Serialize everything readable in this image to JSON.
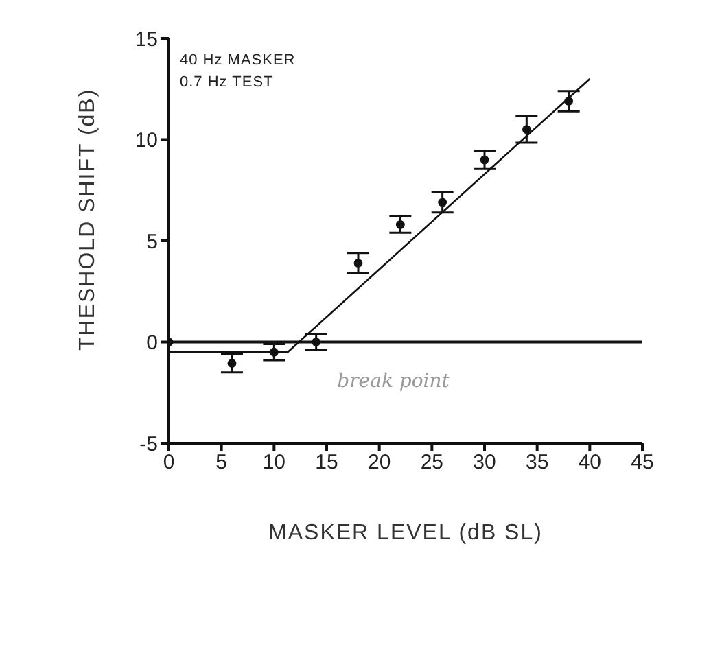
{
  "chart_data": {
    "type": "scatter",
    "xlabel": "MASKER LEVEL (dB SL)",
    "ylabel": "THESHOLD SHIFT (dB)",
    "annotations": [
      "40 Hz MASKER",
      "0.7 Hz TEST",
      "break point"
    ],
    "series": [
      {
        "color": "#111111",
        "marker": "circle",
        "x": [
          0,
          6,
          10,
          14,
          18,
          22,
          26,
          30,
          34,
          38
        ],
        "values": [
          0,
          -1.05,
          -0.5,
          0,
          3.9,
          5.8,
          6.9,
          9.0,
          10.5,
          11.9
        ],
        "errors": [
          null,
          0.45,
          0.4,
          0.4,
          0.5,
          0.4,
          0.5,
          0.45,
          0.65,
          0.5
        ]
      },
      {
        "type": "line",
        "color": "#111111",
        "line_style": "solid",
        "x": [
          0,
          11.3,
          40
        ],
        "values": [
          -0.5,
          -0.5,
          13
        ]
      }
    ],
    "ref_lines": [
      {
        "axis": "y",
        "value": 0,
        "color": "#111111",
        "line_style": "solid"
      }
    ],
    "xlim": [
      0,
      45
    ],
    "xticks": [
      0,
      5,
      10,
      15,
      20,
      25,
      30,
      35,
      40,
      45
    ],
    "ylim": [
      -5,
      15
    ],
    "yticks": [
      -5,
      0,
      5,
      10,
      15
    ],
    "grid": false,
    "legend": false
  }
}
